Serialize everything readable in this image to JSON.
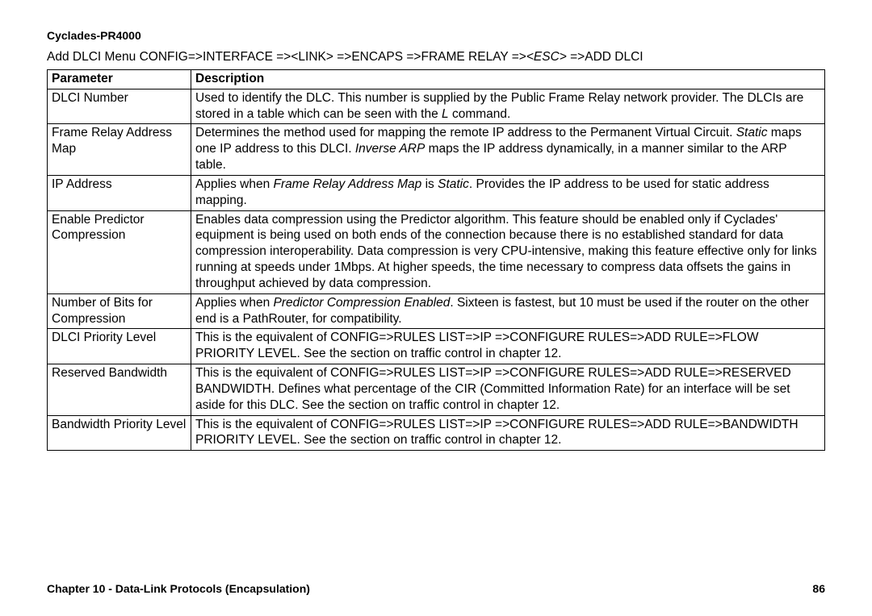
{
  "header": {
    "product": "Cyclades-PR4000"
  },
  "menu_path": {
    "prefix": "Add DLCI Menu  CONFIG=>INTERFACE =><LINK> =>ENCAPS =>FRAME RELAY =>",
    "italic": "<ESC>",
    "suffix": " =>ADD DLCI"
  },
  "table": {
    "headers": {
      "param": "Parameter",
      "desc": "Description"
    },
    "rows": [
      {
        "param": "DLCI Number",
        "desc_parts": [
          {
            "t": "Used to identify the DLC.  This number is supplied by the Public Frame Relay network provider.  The DLCIs are stored in a table which can be seen with the "
          },
          {
            "t": "L",
            "i": true
          },
          {
            "t": " command."
          }
        ]
      },
      {
        "param": "Frame Relay Address Map",
        "desc_parts": [
          {
            "t": "Determines the method used for mapping the remote IP address to the Permanent Virtual Circuit.  "
          },
          {
            "t": "Static",
            "i": true
          },
          {
            "t": " maps one IP address to this DLCI.  "
          },
          {
            "t": "Inverse ARP",
            "i": true
          },
          {
            "t": " maps the IP address dynamically, in a manner similar to the ARP table."
          }
        ]
      },
      {
        "param": "IP Address",
        "desc_parts": [
          {
            "t": "Applies when "
          },
          {
            "t": "Frame Relay Address Map",
            "i": true
          },
          {
            "t": " is "
          },
          {
            "t": "Static",
            "i": true
          },
          {
            "t": ".  Provides the IP address to be used for static address mapping."
          }
        ]
      },
      {
        "param": "Enable Predictor Compression",
        "desc_parts": [
          {
            "t": "Enables data compression using the Predictor algorithm.  This feature should be enabled only if Cyclades' equipment is being used on both ends of the connection because there is no established standard for data compression interoperability.  Data compression is very CPU-intensive, making this feature effective only for links running at speeds under 1Mbps.  At higher speeds, the time necessary to compress data offsets the gains in throughput achieved by data compression."
          }
        ]
      },
      {
        "param": "Number of Bits for Compression",
        "desc_parts": [
          {
            "t": "Applies when  "
          },
          {
            "t": "Predictor Compression Enabled",
            "i": true
          },
          {
            "t": ".  Sixteen is fastest, but 10 must be used if the router on the other end is a PathRouter, for compatibility."
          }
        ]
      },
      {
        "param": "DLCI Priority Level",
        "desc_parts": [
          {
            "t": "This is the equivalent of CONFIG=>RULES LIST=>IP =>CONFIGURE RULES=>ADD RULE=>FLOW PRIORITY LEVEL.  See the section on traffic control in chapter 12."
          }
        ]
      },
      {
        "param": "Reserved Bandwidth",
        "desc_parts": [
          {
            "t": "This is the equivalent of CONFIG=>RULES LIST=>IP =>CONFIGURE RULES=>ADD RULE=>RESERVED BANDWIDTH.  Defines what percentage of the CIR (Committed Information Rate) for an interface will be set aside for this DLC. See the section on traffic control in chapter 12."
          }
        ]
      },
      {
        "param": "Bandwidth Priority Level",
        "desc_parts": [
          {
            "t": "This is the equivalent of CONFIG=>RULES LIST=>IP =>CONFIGURE RULES=>ADD RULE=>BANDWIDTH PRIORITY LEVEL.  See the section on traffic control in chapter 12."
          }
        ]
      }
    ]
  },
  "footer": {
    "chapter": "Chapter 10 - Data-Link Protocols (Encapsulation)",
    "page": "86"
  }
}
